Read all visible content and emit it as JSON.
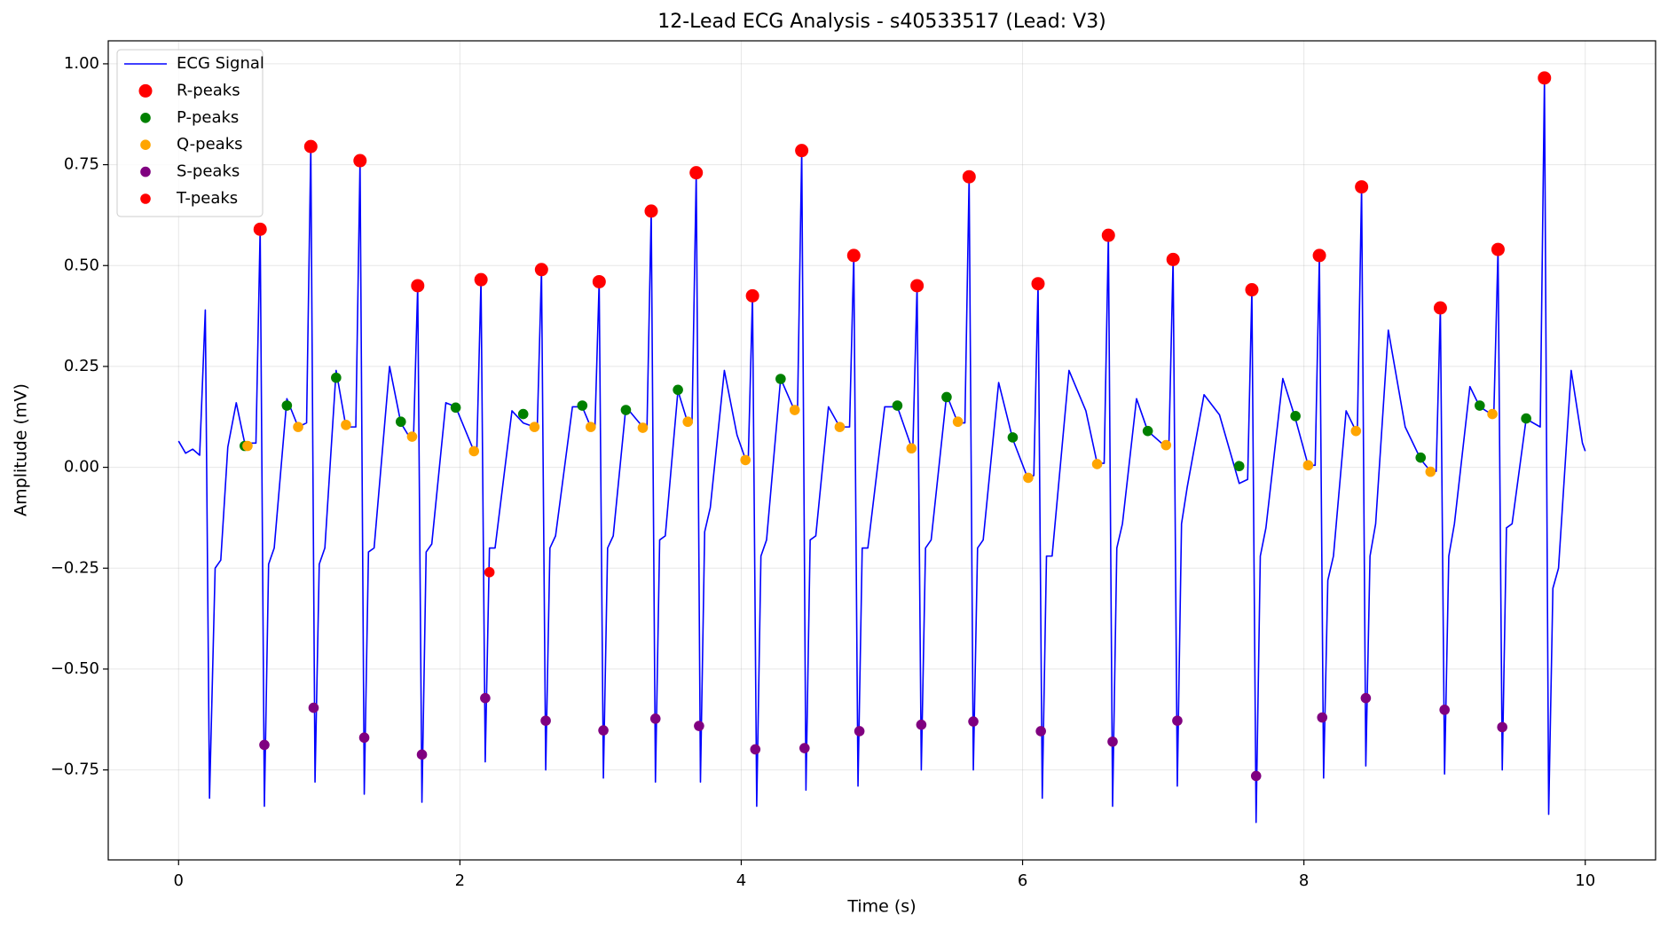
{
  "chart_data": {
    "type": "line",
    "title": "12-Lead ECG Analysis - s40533517 (Lead: V3)",
    "x_label": "Time (s)",
    "y_label": "Amplitude (mV)",
    "xlim": [
      -0.5,
      10.5
    ],
    "ylim": [
      -0.973,
      1.057
    ],
    "xticks": [
      0,
      2,
      4,
      6,
      8,
      10
    ],
    "yticks": [
      {
        "value": -0.75,
        "label": "−0.75"
      },
      {
        "value": -0.5,
        "label": "−0.50"
      },
      {
        "value": -0.25,
        "label": "−0.25"
      },
      {
        "value": 0,
        "label": "0.00"
      },
      {
        "value": 0.25,
        "label": "0.25"
      },
      {
        "value": 0.5,
        "label": "0.50"
      },
      {
        "value": 0.75,
        "label": "0.75"
      },
      {
        "value": 1,
        "label": "1.00"
      }
    ],
    "grid": true,
    "legend": "upper left",
    "series": [
      {
        "name": "ECG Signal",
        "color": "#0000ff",
        "style": "line",
        "x": [
          0,
          0.05,
          0.1,
          0.15,
          0.19,
          0.22,
          0.26,
          0.3,
          0.35,
          0.41,
          0.47,
          0.55,
          0.58,
          0.61,
          0.64,
          0.68,
          0.77,
          0.85,
          0.91,
          0.94,
          0.97,
          1.0,
          1.04,
          1.12,
          1.19,
          1.26,
          1.29,
          1.32,
          1.35,
          1.39,
          1.5,
          1.58,
          1.65,
          1.67,
          1.7,
          1.73,
          1.76,
          1.8,
          1.9,
          1.97,
          2.1,
          2.12,
          2.15,
          2.18,
          2.21,
          2.25,
          2.37,
          2.45,
          2.53,
          2.55,
          2.58,
          2.61,
          2.64,
          2.68,
          2.8,
          2.87,
          2.93,
          2.96,
          2.99,
          3.02,
          3.05,
          3.09,
          3.18,
          3.3,
          3.33,
          3.36,
          3.39,
          3.42,
          3.46,
          3.55,
          3.62,
          3.65,
          3.68,
          3.71,
          3.74,
          3.78,
          3.88,
          3.97,
          4.03,
          4.05,
          4.08,
          4.11,
          4.14,
          4.18,
          4.28,
          4.38,
          4.4,
          4.43,
          4.46,
          4.49,
          4.53,
          4.62,
          4.7,
          4.77,
          4.8,
          4.83,
          4.86,
          4.9,
          5.02,
          5.11,
          5.21,
          5.22,
          5.25,
          5.28,
          5.31,
          5.35,
          5.46,
          5.54,
          5.59,
          5.62,
          5.65,
          5.68,
          5.72,
          5.83,
          5.93,
          6.04,
          6.08,
          6.11,
          6.14,
          6.17,
          6.21,
          6.33,
          6.45,
          6.53,
          6.58,
          6.61,
          6.64,
          6.67,
          6.71,
          6.81,
          6.89,
          7.02,
          7.04,
          7.07,
          7.1,
          7.13,
          7.17,
          7.29,
          7.4,
          7.54,
          7.6,
          7.63,
          7.66,
          7.69,
          7.73,
          7.85,
          7.94,
          8.03,
          8.08,
          8.11,
          8.14,
          8.17,
          8.21,
          8.3,
          8.37,
          8.38,
          8.41,
          8.44,
          8.47,
          8.51,
          8.6,
          8.72,
          8.83,
          8.9,
          8.94,
          8.97,
          9.0,
          9.03,
          9.07,
          9.18,
          9.25,
          9.34,
          9.35,
          9.38,
          9.41,
          9.44,
          9.48,
          9.58,
          9.68,
          9.71,
          9.74,
          9.77,
          9.81,
          9.9,
          9.98,
          10.0
        ],
        "values": [
          0.065,
          0.035,
          0.045,
          0.03,
          0.39,
          -0.82,
          -0.25,
          -0.23,
          0.05,
          0.16,
          0.06,
          0.06,
          0.59,
          -0.84,
          -0.24,
          -0.2,
          0.17,
          0.1,
          0.11,
          0.795,
          -0.78,
          -0.24,
          -0.2,
          0.24,
          0.1,
          0.1,
          0.76,
          -0.81,
          -0.21,
          -0.2,
          0.25,
          0.11,
          0.07,
          0.07,
          0.45,
          -0.83,
          -0.21,
          -0.19,
          0.16,
          0.15,
          0.04,
          0.04,
          0.465,
          -0.73,
          -0.2,
          -0.2,
          0.14,
          0.11,
          0.1,
          0.1,
          0.49,
          -0.75,
          -0.2,
          -0.17,
          0.15,
          0.15,
          0.1,
          0.1,
          0.46,
          -0.77,
          -0.2,
          -0.17,
          0.15,
          0.1,
          0.1,
          0.635,
          -0.78,
          -0.18,
          -0.17,
          0.19,
          0.11,
          0.11,
          0.73,
          -0.78,
          -0.16,
          -0.1,
          0.24,
          0.08,
          0.02,
          0.02,
          0.425,
          -0.84,
          -0.22,
          -0.18,
          0.22,
          0.14,
          0.14,
          0.785,
          -0.8,
          -0.18,
          -0.17,
          0.15,
          0.1,
          0.1,
          0.525,
          -0.79,
          -0.2,
          -0.2,
          0.15,
          0.15,
          0.05,
          0.05,
          0.45,
          -0.75,
          -0.2,
          -0.18,
          0.18,
          0.11,
          0.11,
          0.72,
          -0.75,
          -0.2,
          -0.18,
          0.21,
          0.07,
          -0.03,
          -0.02,
          0.455,
          -0.82,
          -0.22,
          -0.22,
          0.24,
          0.14,
          0.01,
          0.01,
          0.575,
          -0.84,
          -0.2,
          -0.14,
          0.17,
          0.09,
          0.05,
          0.05,
          0.515,
          -0.79,
          -0.14,
          -0.05,
          0.18,
          0.13,
          -0.04,
          -0.03,
          0.44,
          -0.88,
          -0.22,
          -0.15,
          0.22,
          0.12,
          0.005,
          0.005,
          0.525,
          -0.77,
          -0.28,
          -0.22,
          0.14,
          0.09,
          0.09,
          0.695,
          -0.74,
          -0.22,
          -0.14,
          0.34,
          0.1,
          0.02,
          -0.01,
          -0.01,
          0.395,
          -0.76,
          -0.22,
          -0.14,
          0.2,
          0.15,
          0.13,
          0.13,
          0.54,
          -0.75,
          -0.15,
          -0.14,
          0.12,
          0.1,
          0.965,
          -0.86,
          -0.3,
          -0.25,
          0.24,
          0.06,
          0.04
        ]
      },
      {
        "name": "R-peaks",
        "color": "#ff0000",
        "style": "marker",
        "x": [
          0.58,
          0.94,
          1.29,
          1.7,
          2.15,
          2.58,
          2.99,
          3.36,
          3.68,
          4.08,
          4.43,
          4.8,
          5.25,
          5.62,
          6.11,
          6.61,
          7.07,
          7.63,
          8.11,
          8.41,
          8.97,
          9.38,
          9.71
        ],
        "values": [
          0.59,
          0.795,
          0.76,
          0.45,
          0.465,
          0.49,
          0.46,
          0.635,
          0.73,
          0.425,
          0.785,
          0.525,
          0.45,
          0.72,
          0.455,
          0.575,
          0.515,
          0.44,
          0.525,
          0.695,
          0.395,
          0.54,
          0.965
        ]
      },
      {
        "name": "P-peaks",
        "color": "#008000",
        "style": "marker",
        "x": [
          0.47,
          0.77,
          1.12,
          1.58,
          1.97,
          2.45,
          2.87,
          3.18,
          3.55,
          4.28,
          5.11,
          5.46,
          5.93,
          6.89,
          7.54,
          7.94,
          8.83,
          9.25,
          9.58
        ],
        "values": [
          0.053,
          0.153,
          0.222,
          0.113,
          0.148,
          0.132,
          0.153,
          0.142,
          0.192,
          0.219,
          0.153,
          0.174,
          0.074,
          0.09,
          0.003,
          0.127,
          0.024,
          0.153,
          0.121
        ]
      },
      {
        "name": "Q-peaks",
        "color": "#ffa500",
        "style": "marker",
        "x": [
          0.49,
          0.85,
          1.19,
          1.66,
          2.1,
          2.53,
          2.93,
          3.3,
          3.62,
          4.03,
          4.38,
          4.7,
          5.21,
          5.54,
          6.04,
          6.53,
          7.02,
          8.03,
          8.37,
          8.9,
          9.34
        ],
        "values": [
          0.053,
          0.1,
          0.105,
          0.076,
          0.04,
          0.1,
          0.1,
          0.098,
          0.113,
          0.018,
          0.142,
          0.1,
          0.047,
          0.113,
          -0.026,
          0.008,
          0.055,
          0.005,
          0.09,
          -0.011,
          0.132
        ]
      },
      {
        "name": "S-peaks",
        "color": "#800080",
        "style": "marker",
        "x": [
          0.61,
          0.96,
          1.32,
          1.73,
          2.18,
          2.61,
          3.02,
          3.39,
          3.7,
          4.1,
          4.45,
          4.84,
          5.28,
          5.65,
          6.13,
          6.64,
          7.1,
          7.66,
          8.13,
          8.44,
          9.0,
          9.41
        ],
        "values": [
          -0.688,
          -0.596,
          -0.67,
          -0.712,
          -0.572,
          -0.628,
          -0.652,
          -0.623,
          -0.641,
          -0.699,
          -0.696,
          -0.654,
          -0.638,
          -0.63,
          -0.654,
          -0.68,
          -0.628,
          -0.765,
          -0.62,
          -0.572,
          -0.601,
          -0.644
        ]
      },
      {
        "name": "T-peaks",
        "color": "#ff0000",
        "style": "marker",
        "x": [
          2.21
        ],
        "values": [
          -0.26
        ]
      }
    ]
  }
}
